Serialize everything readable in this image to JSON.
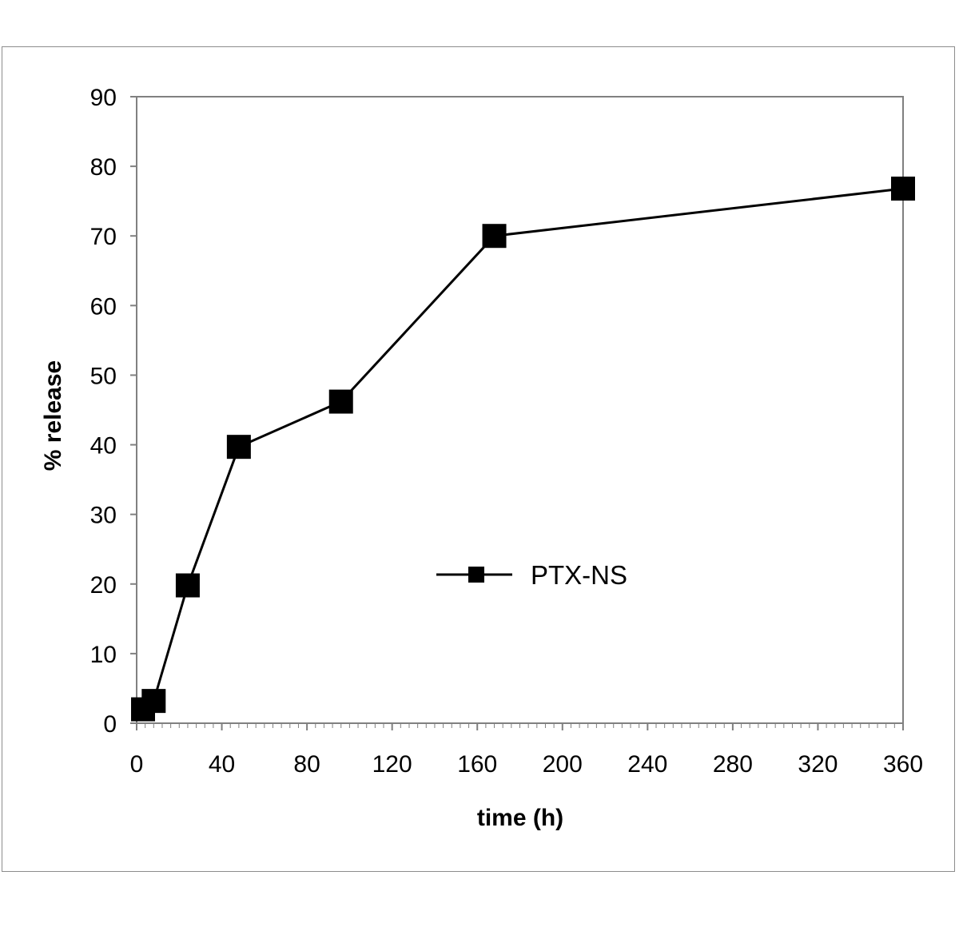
{
  "chart_data": {
    "type": "line",
    "title": "",
    "xlabel": "time (h)",
    "ylabel": "% release",
    "xlim": [
      0,
      360
    ],
    "ylim": [
      0,
      90
    ],
    "xticks": [
      0,
      40,
      80,
      120,
      160,
      200,
      240,
      280,
      320,
      360
    ],
    "yticks": [
      0,
      10,
      20,
      30,
      40,
      50,
      60,
      70,
      80,
      90
    ],
    "xtick_labels": [
      "0",
      "40",
      "80",
      "120",
      "160",
      "200",
      "240",
      "280",
      "320",
      "360"
    ],
    "ytick_labels": [
      "0",
      "10",
      "20",
      "30",
      "40",
      "50",
      "60",
      "70",
      "80",
      "90"
    ],
    "grid": false,
    "legend_position": "center-right",
    "series": [
      {
        "name": "PTX-NS",
        "color": "#000000",
        "marker": "square",
        "x": [
          3,
          8,
          24,
          48,
          96,
          168,
          360
        ],
        "y": [
          2,
          3.2,
          19.8,
          39.7,
          46.2,
          70,
          76.8
        ]
      }
    ]
  }
}
